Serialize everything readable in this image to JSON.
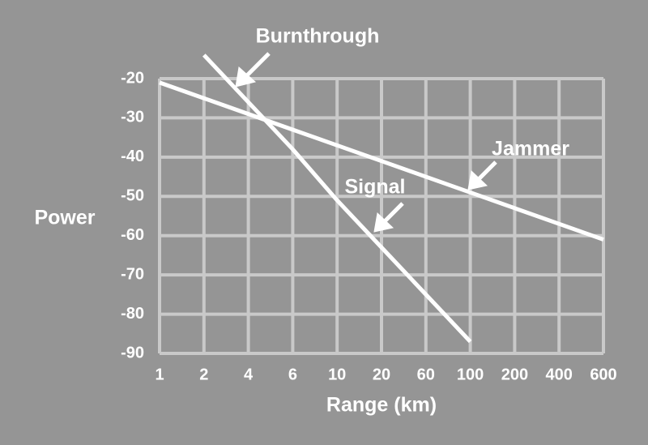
{
  "chart_data": {
    "type": "line",
    "xlabel": "Range (km)",
    "ylabel": "Power",
    "categories": [
      "1",
      "2",
      "4",
      "6",
      "10",
      "20",
      "60",
      "100",
      "200",
      "400",
      "600"
    ],
    "series": [
      {
        "name": "Signal",
        "color": "#ffffff",
        "values": [
          null,
          -14,
          -26,
          -38,
          -51,
          -63,
          -75,
          -87,
          null,
          null,
          null
        ]
      },
      {
        "name": "Jammer",
        "color": "#ffffff",
        "values": [
          -21,
          -25,
          -29,
          -33,
          -37,
          -41,
          -45,
          -49,
          -53,
          -57,
          -61
        ]
      }
    ],
    "annotations": [
      "Burnthrough"
    ],
    "ylim": [
      -90,
      -20
    ],
    "yticks": [
      -90,
      -80,
      -70,
      -60,
      -50,
      -40,
      -30,
      -20
    ],
    "grid": true
  }
}
